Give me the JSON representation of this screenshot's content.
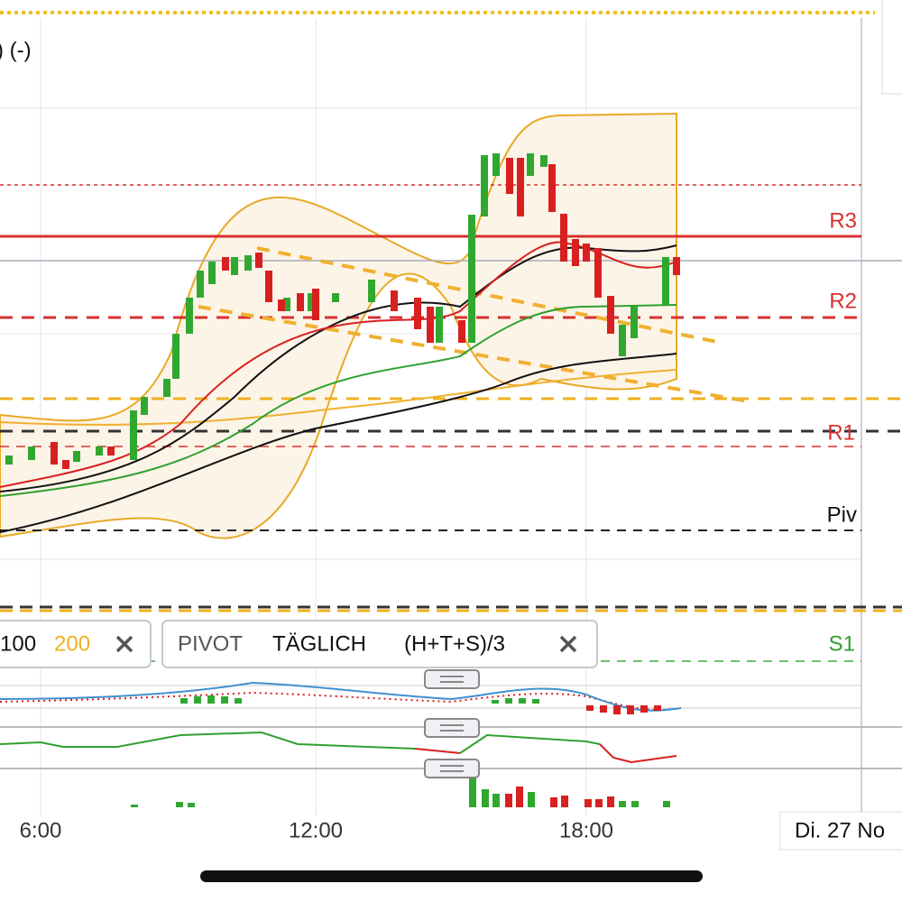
{
  "header": {
    "title_fragment": ") (-)"
  },
  "levels": {
    "r3": "R3",
    "r2": "R2",
    "r1": "R1",
    "piv": "Piv",
    "s1": "S1"
  },
  "legend": [
    {
      "items": [
        "100",
        "200"
      ]
    },
    {
      "items": [
        "PIVOT",
        "TÄGLICH",
        "(H+T+S)/3"
      ]
    }
  ],
  "x_axis": {
    "labels": [
      "6:00",
      "12:00",
      "18:00"
    ],
    "date_label": "Di. 27 No"
  }
}
